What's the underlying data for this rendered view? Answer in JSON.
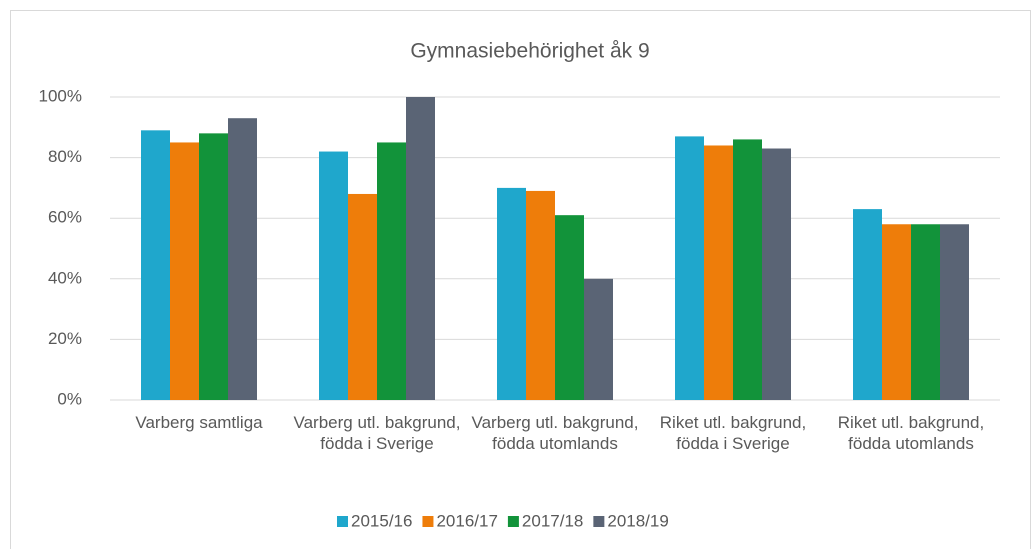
{
  "chart_data": {
    "type": "bar",
    "title": "Gymnasiebehörighet åk 9",
    "categories": [
      "Varberg samtliga",
      "Varberg utl. bakgrund, födda i Sverige",
      "Varberg utl. bakgrund, födda utomlands",
      "Riket utl. bakgrund, födda i Sverige",
      "Riket utl. bakgrund, födda utomlands"
    ],
    "series": [
      {
        "name": "2015/16",
        "color": "#1fa7cc",
        "values": [
          89,
          82,
          70,
          87,
          63
        ]
      },
      {
        "name": "2016/17",
        "color": "#ee7d0a",
        "values": [
          85,
          68,
          69,
          84,
          58
        ]
      },
      {
        "name": "2017/18",
        "color": "#12933a",
        "values": [
          88,
          85,
          61,
          86,
          58
        ]
      },
      {
        "name": "2018/19",
        "color": "#5a6475",
        "values": [
          93,
          100,
          40,
          83,
          58
        ]
      }
    ],
    "ylim": [
      0,
      100
    ],
    "yticks": [
      {
        "value": 0,
        "label": "0%"
      },
      {
        "value": 20,
        "label": "20%"
      },
      {
        "value": 40,
        "label": "40%"
      },
      {
        "value": 60,
        "label": "60%"
      },
      {
        "value": 80,
        "label": "80%"
      },
      {
        "value": 100,
        "label": "100%"
      }
    ],
    "grid": true,
    "legend": "bottom"
  }
}
